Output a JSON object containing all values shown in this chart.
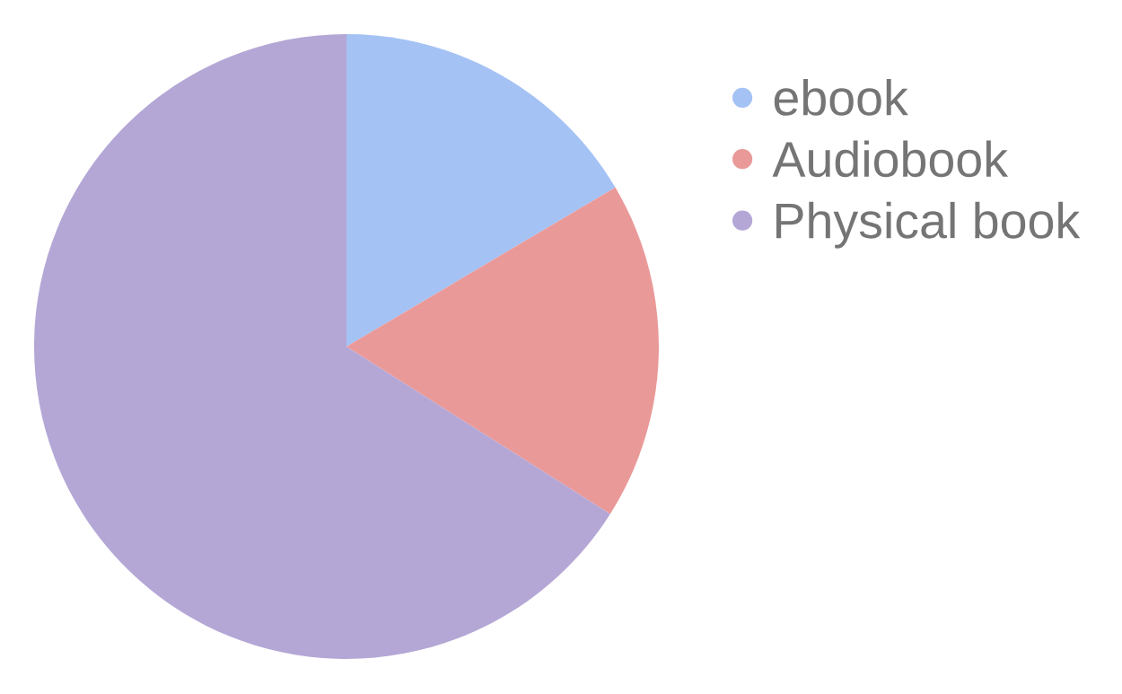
{
  "chart_data": {
    "type": "pie",
    "categories": [
      "ebook",
      "Audiobook",
      "Physical book"
    ],
    "values": [
      16.5,
      17.5,
      66
    ],
    "colors": [
      "#a4c2f4",
      "#ea9999",
      "#b4a7d6"
    ],
    "legend": "right"
  }
}
